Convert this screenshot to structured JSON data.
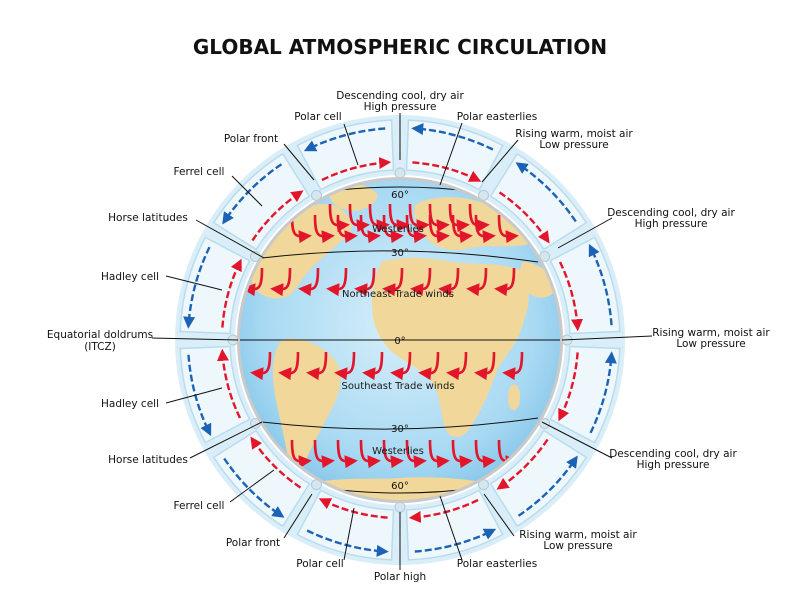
{
  "title": "GLOBAL ATMOSPHERIC CIRCULATION",
  "globe": {
    "latitudes": {
      "north60": "60°",
      "north30": "30°",
      "equator": "0°",
      "south30": "30°",
      "south60": "60°"
    },
    "winds": {
      "north_westerlies": "Westerlies",
      "northeast_trades": "Northeast Trade winds",
      "southeast_trades": "Southeast Trade winds",
      "south_westerlies": "Westerlies"
    }
  },
  "labels": {
    "top_descending": [
      "Descending cool, dry air",
      "High pressure"
    ],
    "polar_cell_top": "Polar cell",
    "polar_easterlies_top": "Polar easterlies",
    "polar_front_top": "Polar front",
    "rising_top_right": [
      "Rising warm, moist air",
      "Low pressure"
    ],
    "ferrel_cell_top": "Ferrel cell",
    "descending_right_top": [
      "Descending cool, dry air",
      "High pressure"
    ],
    "horse_latitudes_top": "Horse latitudes",
    "hadley_cell_top": "Hadley cell",
    "equatorial_doldrums": [
      "Equatorial doldrums",
      "(ITCZ)"
    ],
    "rising_right_mid": [
      "Rising warm, moist air",
      "Low pressure"
    ],
    "hadley_cell_bottom": "Hadley cell",
    "horse_latitudes_bottom": "Horse latitudes",
    "descending_right_bottom": [
      "Descending cool, dry air",
      "High pressure"
    ],
    "ferrel_cell_bottom": "Ferrel cell",
    "polar_front_bottom": "Polar front",
    "rising_bottom_right": [
      "Rising warm, moist air",
      "Low pressure"
    ],
    "polar_cell_bottom": "Polar cell",
    "polar_easterlies_bottom": "Polar easterlies",
    "polar_high": "Polar high"
  },
  "colors": {
    "ocean": "#8fcdef",
    "ocean_light": "#cfeaf8",
    "land": "#f2d79a",
    "warm_arrow": "#e3152b",
    "cool_arrow": "#1d63b5",
    "cell_fill": "#eef7fc",
    "cell_border": "#b9dced"
  }
}
